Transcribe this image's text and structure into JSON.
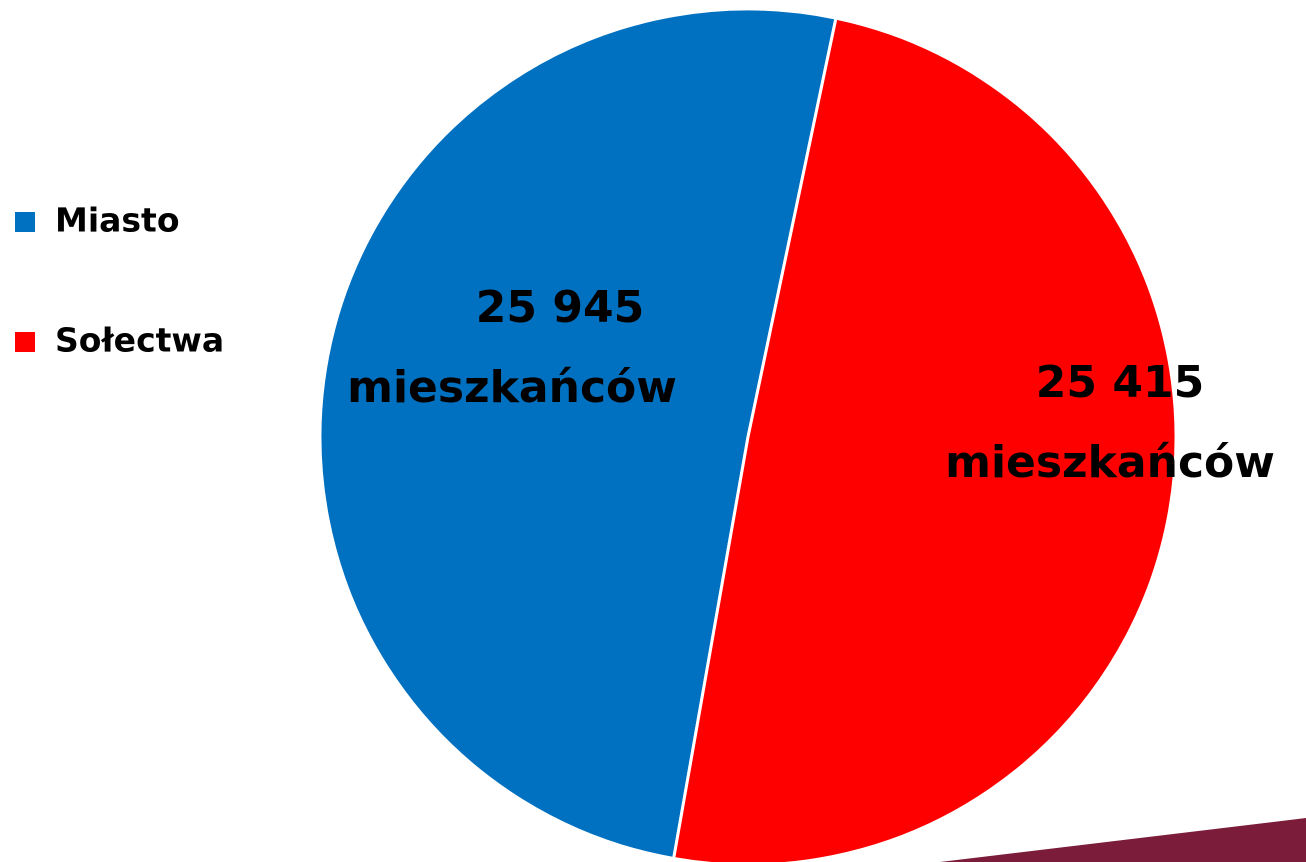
{
  "chart_data": {
    "type": "pie",
    "categories": [
      "Miasto",
      "Sołectwa"
    ],
    "values": [
      25945,
      25415
    ],
    "value_labels": [
      "25 945",
      "25 415"
    ],
    "value_unit": "mieszkańców",
    "colors": [
      "#0070c0",
      "#ff0000"
    ],
    "legend": "left"
  }
}
